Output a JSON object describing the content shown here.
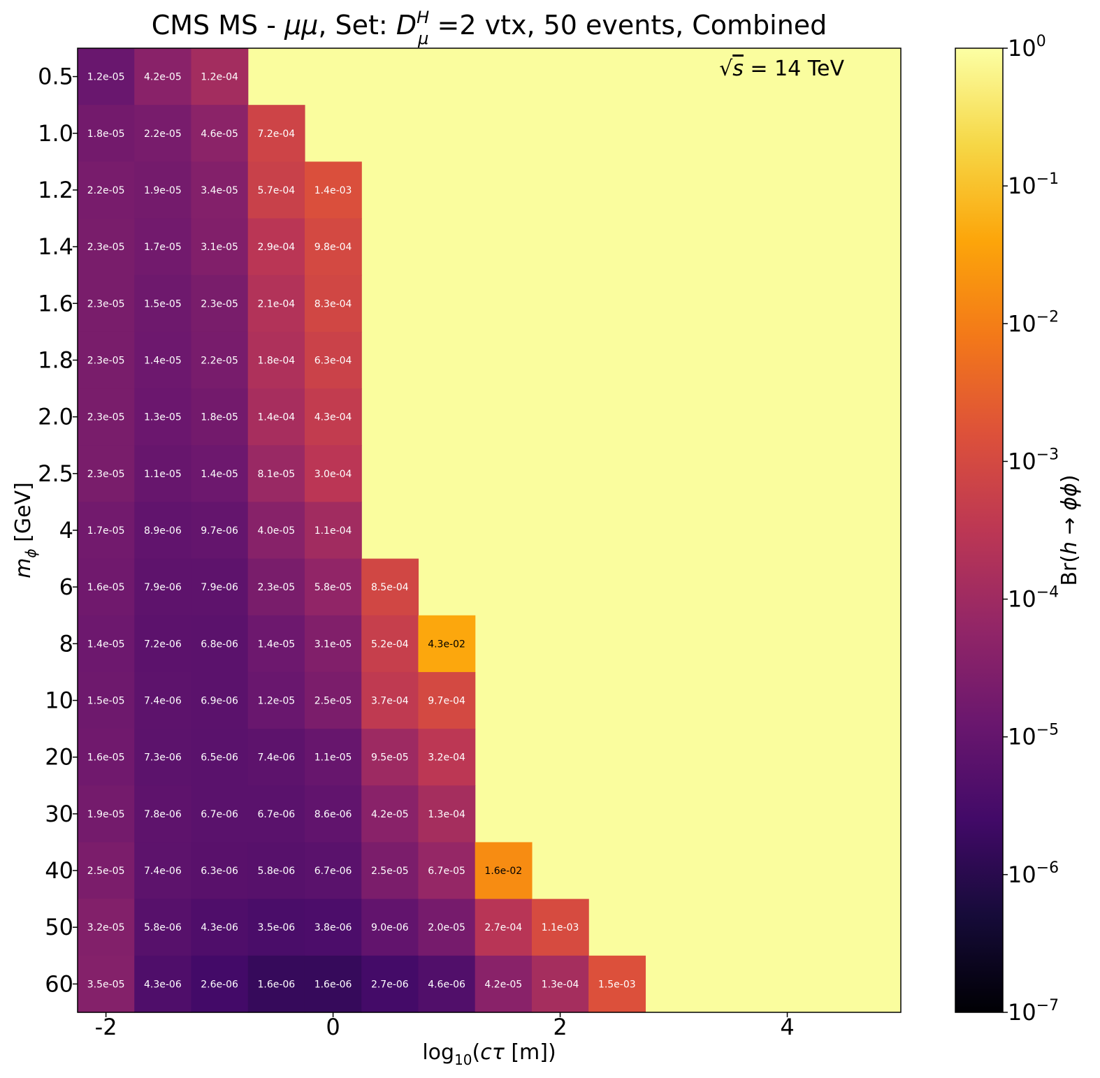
{
  "chart_data": {
    "type": "heatmap",
    "title_parts": {
      "pre": "CMS MS - ",
      "mumu": "μμ",
      "mid": ", Set: ",
      "D": "D",
      "sup": "H",
      "sub": "μ",
      "post": " =2 vtx, 50 events, Combined"
    },
    "annotation": {
      "sqrt": "√",
      "s": "s",
      "rest": " = 14 TeV"
    },
    "xlabel": {
      "pre": "log",
      "sub": "10",
      "mid": "(",
      "ctau": "cτ",
      "post": " [m])"
    },
    "ylabel": {
      "m": "m",
      "sub": "ϕ",
      "post": " [GeV]"
    },
    "colorbar_label": {
      "pre": "Br(",
      "h": "h",
      "arrow": " → ",
      "phiphi": "ϕϕ",
      "post": ")"
    },
    "colormap": "inferno",
    "colorbar_range": [
      1e-07,
      1
    ],
    "colorbar_scale": "log",
    "colorbar_ticks": [
      {
        "base": "10",
        "exp": "0"
      },
      {
        "base": "10",
        "exp": "−1"
      },
      {
        "base": "10",
        "exp": "−2"
      },
      {
        "base": "10",
        "exp": "−3"
      },
      {
        "base": "10",
        "exp": "−4"
      },
      {
        "base": "10",
        "exp": "−5"
      },
      {
        "base": "10",
        "exp": "−6"
      },
      {
        "base": "10",
        "exp": "−7"
      }
    ],
    "colorbar_tick_values": [
      0,
      -1,
      -2,
      -3,
      -4,
      -5,
      -6,
      -7
    ],
    "background_value": 1,
    "x_centers": [
      -2.0,
      -1.5,
      -1.0,
      -0.5,
      0.0,
      0.5,
      1.0,
      1.5,
      2.0,
      2.5
    ],
    "x_range": [
      -2.25,
      5.0
    ],
    "x_ticks": [
      "-2",
      "0",
      "2",
      "4"
    ],
    "x_tick_values": [
      -2,
      0,
      2,
      4
    ],
    "y_labels": [
      "0.5",
      "1.0",
      "1.2",
      "1.4",
      "1.6",
      "1.8",
      "2.0",
      "2.5",
      "4",
      "6",
      "8",
      "10",
      "20",
      "30",
      "40",
      "50",
      "60"
    ],
    "rows": [
      [
        "1.2e-05",
        "4.2e-05",
        "1.2e-04"
      ],
      [
        "1.8e-05",
        "2.2e-05",
        "4.6e-05",
        "7.2e-04"
      ],
      [
        "2.2e-05",
        "1.9e-05",
        "3.4e-05",
        "5.7e-04",
        "1.4e-03"
      ],
      [
        "2.3e-05",
        "1.7e-05",
        "3.1e-05",
        "2.9e-04",
        "9.8e-04"
      ],
      [
        "2.3e-05",
        "1.5e-05",
        "2.3e-05",
        "2.1e-04",
        "8.3e-04"
      ],
      [
        "2.3e-05",
        "1.4e-05",
        "2.2e-05",
        "1.8e-04",
        "6.3e-04"
      ],
      [
        "2.3e-05",
        "1.3e-05",
        "1.8e-05",
        "1.4e-04",
        "4.3e-04"
      ],
      [
        "2.3e-05",
        "1.1e-05",
        "1.4e-05",
        "8.1e-05",
        "3.0e-04"
      ],
      [
        "1.7e-05",
        "8.9e-06",
        "9.7e-06",
        "4.0e-05",
        "1.1e-04"
      ],
      [
        "1.6e-05",
        "7.9e-06",
        "7.9e-06",
        "2.3e-05",
        "5.8e-05",
        "8.5e-04"
      ],
      [
        "1.4e-05",
        "7.2e-06",
        "6.8e-06",
        "1.4e-05",
        "3.1e-05",
        "5.2e-04",
        "4.3e-02"
      ],
      [
        "1.5e-05",
        "7.4e-06",
        "6.9e-06",
        "1.2e-05",
        "2.5e-05",
        "3.7e-04",
        "9.7e-04"
      ],
      [
        "1.6e-05",
        "7.3e-06",
        "6.5e-06",
        "7.4e-06",
        "1.1e-05",
        "9.5e-05",
        "3.2e-04"
      ],
      [
        "1.9e-05",
        "7.8e-06",
        "6.7e-06",
        "6.7e-06",
        "8.6e-06",
        "4.2e-05",
        "1.3e-04"
      ],
      [
        "2.5e-05",
        "7.4e-06",
        "6.3e-06",
        "5.8e-06",
        "6.7e-06",
        "2.5e-05",
        "6.7e-05",
        "1.6e-02"
      ],
      [
        "3.2e-05",
        "5.8e-06",
        "4.3e-06",
        "3.5e-06",
        "3.8e-06",
        "9.0e-06",
        "2.0e-05",
        "2.7e-04",
        "1.1e-03"
      ],
      [
        "3.5e-05",
        "4.3e-06",
        "2.6e-06",
        "1.6e-06",
        "1.6e-06",
        "2.7e-06",
        "4.6e-06",
        "4.2e-05",
        "1.3e-04",
        "1.5e-03"
      ]
    ]
  }
}
